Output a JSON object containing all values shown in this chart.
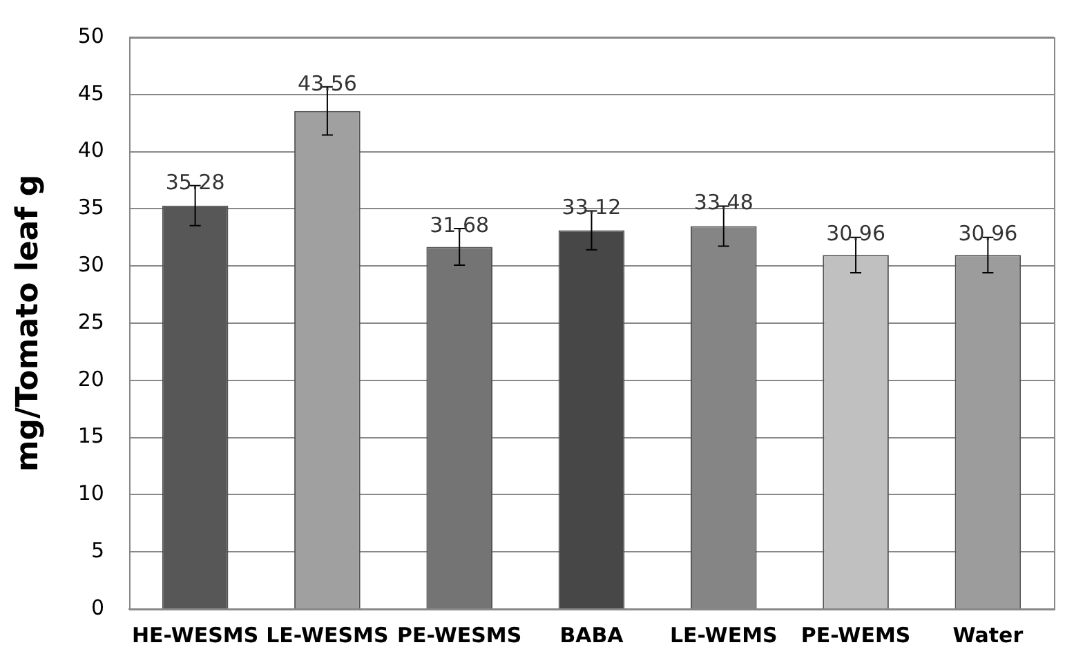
{
  "chart_data": {
    "type": "bar",
    "ylabel": "mg/Tomato leaf g",
    "categories": [
      "HE-WESMS",
      "LE-WESMS",
      "PE-WESMS",
      "BABA",
      "LE-WEMS",
      "PE-WEMS",
      "Water"
    ],
    "values": [
      35.28,
      43.56,
      31.68,
      33.12,
      33.48,
      30.96,
      30.96
    ],
    "errors": [
      1.75,
      2.1,
      1.6,
      1.7,
      1.75,
      1.55,
      1.55
    ],
    "colors": [
      "#575757",
      "#a0a0a0",
      "#747474",
      "#474747",
      "#858585",
      "#c0c0c0",
      "#9c9c9c"
    ],
    "ylim": [
      0,
      50
    ],
    "yticks": [
      0,
      5,
      10,
      15,
      20,
      25,
      30,
      35,
      40,
      45,
      50
    ],
    "grid": "y",
    "data_labels": true
  }
}
